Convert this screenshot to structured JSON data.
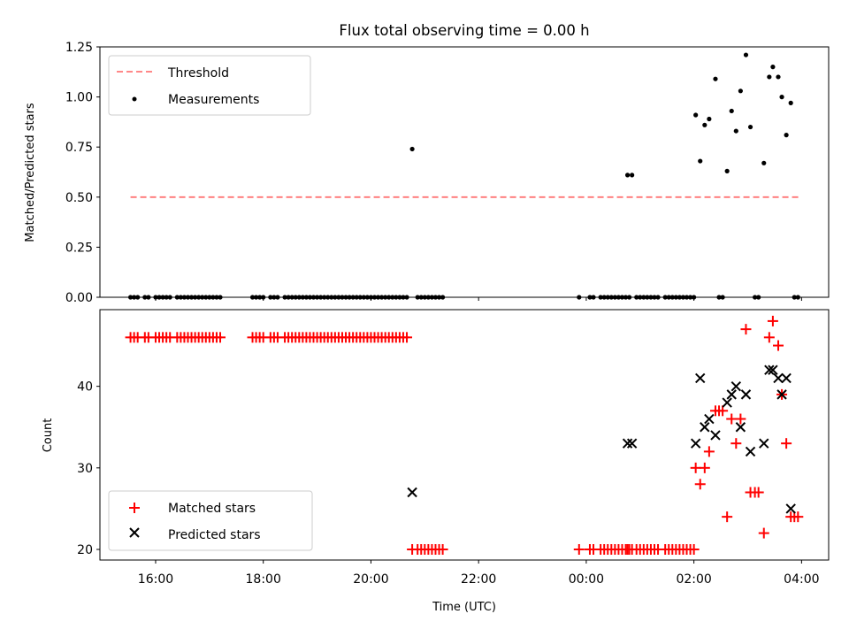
{
  "chart_data": {
    "type": "scatter",
    "title": "Flux total observing time = 0.00 h",
    "xlabel": "Time (UTC)",
    "x_tick_labels": [
      "16:00",
      "18:00",
      "20:00",
      "22:00",
      "00:00",
      "02:00",
      "04:00"
    ],
    "top_panel": {
      "ylabel": "Matched/Predicted stars",
      "ylim": [
        0,
        1.25
      ],
      "y_tick_labels": [
        "0.00",
        "0.25",
        "0.50",
        "0.75",
        "1.00",
        "1.25"
      ],
      "legend": {
        "position": "upper left",
        "threshold_label": "Threshold",
        "measurements_label": "Measurements"
      },
      "threshold": {
        "value": 0.5,
        "x_start": "15:32",
        "x_end": "03:57",
        "color": "#ff7777",
        "style": "dashed"
      },
      "measurements": {
        "color": "#000000",
        "zero_times": [
          "15:32",
          "15:36",
          "15:40",
          "15:48",
          "15:52",
          "16:00",
          "16:04",
          "16:08",
          "16:12",
          "16:16",
          "16:24",
          "16:28",
          "16:32",
          "16:36",
          "16:40",
          "16:44",
          "16:48",
          "16:52",
          "16:56",
          "17:00",
          "17:04",
          "17:08",
          "17:12",
          "17:48",
          "17:52",
          "17:56",
          "18:00",
          "18:08",
          "18:12",
          "18:16",
          "18:24",
          "18:28",
          "18:32",
          "18:36",
          "18:40",
          "18:44",
          "18:48",
          "18:52",
          "18:56",
          "19:00",
          "19:04",
          "19:08",
          "19:12",
          "19:16",
          "19:20",
          "19:24",
          "19:28",
          "19:32",
          "19:36",
          "19:40",
          "19:44",
          "19:48",
          "19:52",
          "19:56",
          "20:00",
          "20:04",
          "20:08",
          "20:12",
          "20:16",
          "20:20",
          "20:24",
          "20:28",
          "20:32",
          "20:36",
          "20:40",
          "20:52",
          "20:56",
          "21:00",
          "21:04",
          "21:08",
          "21:12",
          "21:16",
          "21:20",
          "23:52",
          "00:04",
          "00:08",
          "00:16",
          "00:20",
          "00:24",
          "00:28",
          "00:32",
          "00:36",
          "00:40",
          "00:44",
          "00:48",
          "00:56",
          "01:00",
          "01:04",
          "01:08",
          "01:12",
          "01:16",
          "01:20",
          "01:28",
          "01:32",
          "01:36",
          "01:40",
          "01:44",
          "01:48",
          "01:52",
          "01:56",
          "02:00",
          "02:28",
          "02:32",
          "03:08",
          "03:12",
          "03:52",
          "03:56"
        ],
        "points": [
          {
            "x": "20:46",
            "y": 0.74
          },
          {
            "x": "00:46",
            "y": 0.61
          },
          {
            "x": "00:51",
            "y": 0.61
          },
          {
            "x": "02:02",
            "y": 0.91
          },
          {
            "x": "02:07",
            "y": 0.68
          },
          {
            "x": "02:12",
            "y": 0.86
          },
          {
            "x": "02:17",
            "y": 0.89
          },
          {
            "x": "02:24",
            "y": 1.09
          },
          {
            "x": "02:37",
            "y": 0.63
          },
          {
            "x": "02:42",
            "y": 0.93
          },
          {
            "x": "02:47",
            "y": 0.83
          },
          {
            "x": "02:52",
            "y": 1.03
          },
          {
            "x": "02:58",
            "y": 1.21
          },
          {
            "x": "03:03",
            "y": 0.85
          },
          {
            "x": "03:18",
            "y": 0.67
          },
          {
            "x": "03:24",
            "y": 1.1
          },
          {
            "x": "03:28",
            "y": 1.15
          },
          {
            "x": "03:34",
            "y": 1.1
          },
          {
            "x": "03:38",
            "y": 1.0
          },
          {
            "x": "03:43",
            "y": 0.81
          },
          {
            "x": "03:48",
            "y": 0.97
          }
        ]
      }
    },
    "bottom_panel": {
      "ylabel": "Count",
      "ylim": [
        18.7,
        49.4
      ],
      "y_tick_labels": [
        "20",
        "30",
        "40"
      ],
      "legend": {
        "position": "lower left",
        "matched_label": "Matched stars",
        "predicted_label": "Predicted stars"
      },
      "matched_stars": {
        "color": "#ff0000",
        "marker": "+",
        "const_46_times": [
          "15:32",
          "15:36",
          "15:40",
          "15:48",
          "15:52",
          "16:00",
          "16:04",
          "16:08",
          "16:12",
          "16:16",
          "16:24",
          "16:28",
          "16:32",
          "16:36",
          "16:40",
          "16:44",
          "16:48",
          "16:52",
          "16:56",
          "17:00",
          "17:04",
          "17:08",
          "17:12",
          "17:48",
          "17:52",
          "17:56",
          "18:00",
          "18:08",
          "18:12",
          "18:16",
          "18:24",
          "18:28",
          "18:32",
          "18:36",
          "18:40",
          "18:44",
          "18:48",
          "18:52",
          "18:56",
          "19:00",
          "19:04",
          "19:08",
          "19:12",
          "19:16",
          "19:20",
          "19:24",
          "19:28",
          "19:32",
          "19:36",
          "19:40",
          "19:44",
          "19:48",
          "19:52",
          "19:56",
          "20:00",
          "20:04",
          "20:08",
          "20:12",
          "20:16",
          "20:20",
          "20:24",
          "20:28",
          "20:32",
          "20:36",
          "20:40"
        ],
        "const_20_times": [
          "20:46",
          "20:52",
          "20:56",
          "21:00",
          "21:04",
          "21:08",
          "21:12",
          "21:16",
          "21:20",
          "23:52",
          "00:04",
          "00:08",
          "00:16",
          "00:20",
          "00:24",
          "00:28",
          "00:32",
          "00:36",
          "00:40",
          "00:44",
          "00:48",
          "00:56",
          "01:00",
          "01:04",
          "01:08",
          "01:12",
          "01:16",
          "01:20",
          "01:28",
          "01:32",
          "01:36",
          "01:40",
          "01:44",
          "01:48",
          "01:52",
          "01:56",
          "02:00"
        ],
        "points": [
          {
            "x": "00:46",
            "y": 20
          },
          {
            "x": "00:51",
            "y": 20
          },
          {
            "x": "02:02",
            "y": 30
          },
          {
            "x": "02:07",
            "y": 28
          },
          {
            "x": "02:12",
            "y": 30
          },
          {
            "x": "02:17",
            "y": 32
          },
          {
            "x": "02:24",
            "y": 37
          },
          {
            "x": "02:28",
            "y": 37
          },
          {
            "x": "02:32",
            "y": 37
          },
          {
            "x": "02:37",
            "y": 24
          },
          {
            "x": "02:42",
            "y": 36
          },
          {
            "x": "02:47",
            "y": 33
          },
          {
            "x": "02:52",
            "y": 36
          },
          {
            "x": "02:58",
            "y": 47
          },
          {
            "x": "03:03",
            "y": 27
          },
          {
            "x": "03:08",
            "y": 27
          },
          {
            "x": "03:12",
            "y": 27
          },
          {
            "x": "03:18",
            "y": 22
          },
          {
            "x": "03:24",
            "y": 46
          },
          {
            "x": "03:28",
            "y": 48
          },
          {
            "x": "03:34",
            "y": 45
          },
          {
            "x": "03:38",
            "y": 39
          },
          {
            "x": "03:43",
            "y": 33
          },
          {
            "x": "03:48",
            "y": 24
          },
          {
            "x": "03:52",
            "y": 24
          },
          {
            "x": "03:56",
            "y": 24
          }
        ]
      },
      "predicted_stars": {
        "color": "#000000",
        "marker": "x",
        "points": [
          {
            "x": "20:46",
            "y": 27
          },
          {
            "x": "00:46",
            "y": 33
          },
          {
            "x": "00:51",
            "y": 33
          },
          {
            "x": "02:02",
            "y": 33
          },
          {
            "x": "02:07",
            "y": 41
          },
          {
            "x": "02:12",
            "y": 35
          },
          {
            "x": "02:17",
            "y": 36
          },
          {
            "x": "02:24",
            "y": 34
          },
          {
            "x": "02:37",
            "y": 38
          },
          {
            "x": "02:42",
            "y": 39
          },
          {
            "x": "02:47",
            "y": 40
          },
          {
            "x": "02:52",
            "y": 35
          },
          {
            "x": "02:58",
            "y": 39
          },
          {
            "x": "03:03",
            "y": 32
          },
          {
            "x": "03:18",
            "y": 33
          },
          {
            "x": "03:24",
            "y": 42
          },
          {
            "x": "03:28",
            "y": 42
          },
          {
            "x": "03:34",
            "y": 41
          },
          {
            "x": "03:38",
            "y": 39
          },
          {
            "x": "03:43",
            "y": 41
          },
          {
            "x": "03:48",
            "y": 25
          }
        ]
      }
    }
  }
}
